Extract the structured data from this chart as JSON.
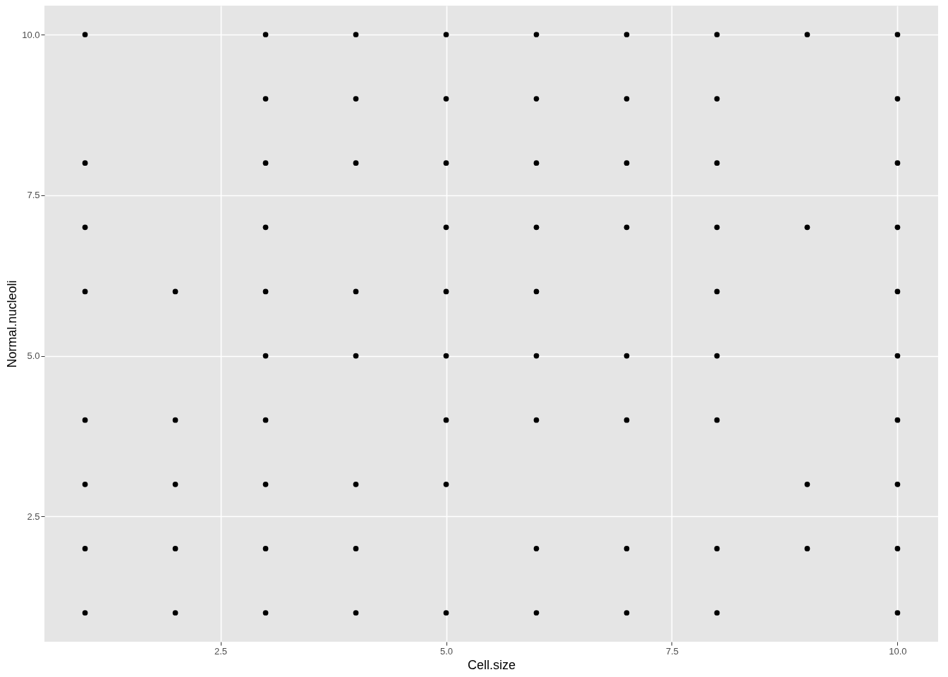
{
  "chart_data": {
    "type": "scatter",
    "xlabel": "Cell.size",
    "ylabel": "Normal.nucleoli",
    "marker": "circle",
    "grid": true,
    "legend": false,
    "xlim": [
      0.55,
      10.45
    ],
    "ylim": [
      0.55,
      10.45
    ],
    "xticks": [
      {
        "value": 2.5,
        "label": "2.5"
      },
      {
        "value": 5,
        "label": "5.0"
      },
      {
        "value": 7.5,
        "label": "7.5"
      },
      {
        "value": 10,
        "label": "10.0"
      }
    ],
    "yticks": [
      {
        "value": 2.5,
        "label": "2.5"
      },
      {
        "value": 5,
        "label": "5.0"
      },
      {
        "value": 7.5,
        "label": "7.5"
      },
      {
        "value": 10,
        "label": "10.0"
      }
    ],
    "series": [
      {
        "color": "#000000",
        "x": [
          1,
          1,
          1,
          1,
          1,
          1,
          1,
          1,
          2,
          2,
          2,
          2,
          2,
          3,
          3,
          3,
          3,
          3,
          3,
          3,
          3,
          3,
          3,
          4,
          4,
          4,
          4,
          4,
          4,
          4,
          4,
          5,
          5,
          5,
          5,
          5,
          5,
          5,
          5,
          5,
          6,
          6,
          6,
          6,
          6,
          6,
          6,
          6,
          6,
          7,
          7,
          7,
          7,
          7,
          7,
          7,
          7,
          8,
          8,
          8,
          8,
          8,
          8,
          8,
          8,
          8,
          9,
          9,
          9,
          9,
          10,
          10,
          10,
          10,
          10,
          10,
          10,
          10,
          10,
          10
        ],
        "values": [
          10,
          8,
          7,
          6,
          4,
          3,
          2,
          1,
          6,
          4,
          3,
          2,
          1,
          10,
          9,
          8,
          7,
          6,
          5,
          4,
          3,
          2,
          1,
          10,
          9,
          8,
          6,
          5,
          3,
          2,
          1,
          10,
          9,
          8,
          7,
          6,
          5,
          4,
          3,
          1,
          10,
          9,
          8,
          7,
          6,
          5,
          4,
          2,
          1,
          10,
          9,
          8,
          7,
          5,
          4,
          2,
          1,
          10,
          9,
          8,
          7,
          6,
          5,
          4,
          2,
          1,
          10,
          7,
          3,
          2,
          10,
          9,
          8,
          7,
          6,
          5,
          4,
          3,
          2,
          1
        ]
      }
    ]
  }
}
